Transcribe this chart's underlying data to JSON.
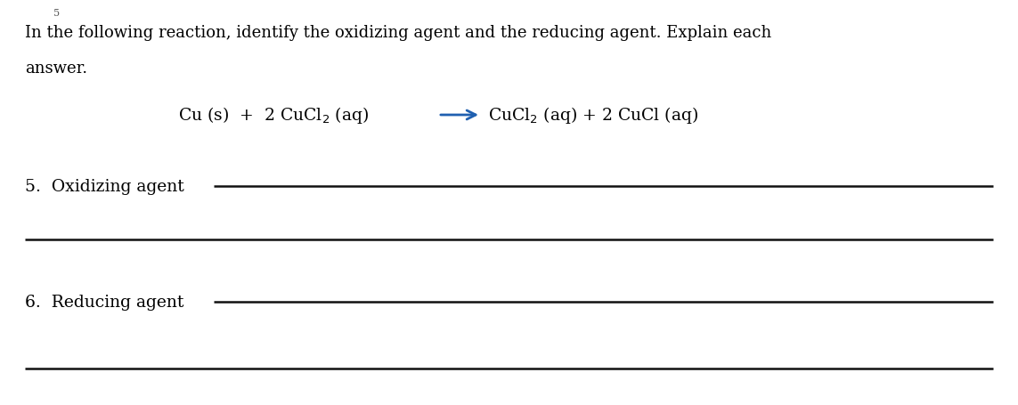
{
  "background_color": "#ffffff",
  "page_number": "5",
  "page_number_fontsize": 8,
  "intro_line1": "In the following reaction, identify the oxidizing agent and the reducing agent. Explain each",
  "intro_line2": "answer.",
  "intro_fontsize": 13.0,
  "equation_fontsize": 13.5,
  "equation_color": "#000000",
  "arrow_color": "#2060b0",
  "left_eq": "Cu (s)  +  2 CuCl",
  "left_eq_sub": "2",
  "left_eq_end": " (aq)",
  "right_eq_start": "CuCl",
  "right_eq_sub": "2",
  "right_eq_end": " (aq) + 2 CuCl (aq)",
  "q5_label": "5.  Oxidizing agent",
  "q5_fontsize": 13.5,
  "q6_label": "6.  Reducing agent",
  "q6_fontsize": 13.5,
  "line_color": "#111111",
  "line_width": 1.8,
  "font_family": "DejaVu Serif"
}
